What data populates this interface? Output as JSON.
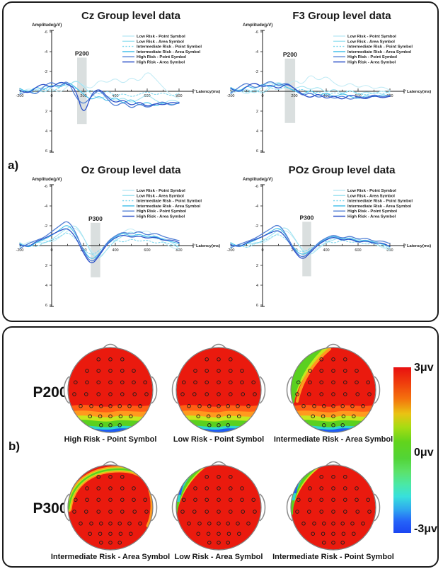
{
  "figure": {
    "panel_a_label": "a)",
    "panel_b_label": "b)"
  },
  "legend": {
    "items": [
      {
        "label": "Low Risk - Point Symbol",
        "color": "#c2ebf5",
        "dash": false
      },
      {
        "label": "Low Risk - Area Symbol",
        "color": "#9de2f1",
        "dash": false
      },
      {
        "label": "Intermediate Risk - Point Symbol",
        "color": "#7cd7ef",
        "dash": true
      },
      {
        "label": "Intermediate Risk - Area Symbol",
        "color": "#3cbde9",
        "dash": false
      },
      {
        "label": "High Risk - Point Symbol",
        "color": "#517fd5",
        "dash": false
      },
      {
        "label": "High Risk - Area Symbol",
        "color": "#2b50c8",
        "dash": false
      }
    ]
  },
  "palette": {
    "red": "#ea1a0e",
    "orange2": "#ff5f14",
    "orange": "#ff9a1e",
    "yellow_green": "#c6e81e",
    "green": "#5ad020",
    "cyan": "#2ed8cc",
    "blue": "#1e5cf5"
  },
  "chart_data": [
    {
      "type": "line",
      "svg_id": "erp-cz",
      "title": "Cz Group level data",
      "xlabel": "Latency(ms)",
      "ylabel": "Amplitude(μV)",
      "xlim": [
        -200,
        800
      ],
      "ylim": [
        -6,
        6
      ],
      "y_inverted": true,
      "xticks": [
        -200,
        0,
        200,
        400,
        600,
        800
      ],
      "yticks": [
        -6,
        -4,
        -2,
        2,
        4,
        6
      ],
      "x_start": -200,
      "x_step": 50,
      "highlight": {
        "label": "P200",
        "from": 160,
        "to": 220,
        "y_from": -3.4,
        "y_to": 3.3
      },
      "series": [
        [
          0.2,
          -0.4,
          0.1,
          -0.6,
          -0.3,
          0.2,
          -0.5,
          -1.1,
          -0.6,
          -0.2,
          -1.2,
          -0.8,
          -1.4,
          -0.7,
          -1.5,
          -0.9,
          -2.1,
          -1.3,
          -0.4,
          0.4,
          0.7
        ],
        [
          -0.2,
          0.3,
          -0.3,
          0.2,
          -0.4,
          -0.9,
          -0.4,
          -1.2,
          -0.5,
          0.3,
          0.8,
          0.4,
          1.0,
          0.6,
          1.2,
          0.8,
          0.3,
          0.9,
          1.3,
          0.8,
          1.1
        ],
        [
          0.1,
          -0.2,
          0.3,
          -0.3,
          0.1,
          -0.4,
          -0.8,
          -0.3,
          0.2,
          -0.2,
          0.4,
          -0.1,
          0.5,
          0.2,
          0.6,
          0.3,
          0.0,
          0.4,
          0.1,
          0.5,
          0.2
        ],
        [
          -0.3,
          0.2,
          -0.5,
          -0.1,
          -0.7,
          -0.3,
          -1.0,
          -0.4,
          0.3,
          0.9,
          0.4,
          1.1,
          0.5,
          1.3,
          0.7,
          1.5,
          1.0,
          1.6,
          1.1,
          1.4,
          1.2
        ],
        [
          0.3,
          -0.1,
          0.4,
          -0.5,
          -1.0,
          -0.4,
          -1.2,
          0.6,
          1.4,
          0.5,
          -0.2,
          0.8,
          1.6,
          1.0,
          1.8,
          1.2,
          1.7,
          1.3,
          1.0,
          1.5,
          1.1
        ],
        [
          -0.1,
          0.3,
          -0.4,
          -0.8,
          -0.3,
          -1.0,
          -0.7,
          -0.3,
          2.6,
          0.2,
          -0.3,
          0.6,
          1.2,
          0.8,
          1.5,
          1.0,
          1.6,
          1.2,
          1.4,
          1.1,
          1.2
        ]
      ]
    },
    {
      "type": "line",
      "svg_id": "erp-f3",
      "title": "F3 Group level data",
      "xlabel": "Latency(ms)",
      "ylabel": "Amplitude(μV)",
      "xlim": [
        -200,
        800
      ],
      "ylim": [
        -6,
        6
      ],
      "y_inverted": true,
      "xticks": [
        -200,
        0,
        200,
        400,
        600,
        800
      ],
      "yticks": [
        -6,
        -4,
        -2,
        2,
        4,
        6
      ],
      "x_start": -200,
      "x_step": 50,
      "highlight": {
        "label": "P200",
        "from": 140,
        "to": 205,
        "y_from": -3.3,
        "y_to": 3.2
      },
      "series": [
        [
          0.3,
          -0.2,
          0.4,
          -0.3,
          0.2,
          -0.6,
          -1.0,
          -0.5,
          -1.2,
          -0.6,
          -1.8,
          -1.0,
          -1.6,
          -0.8,
          -0.4,
          -0.9,
          -0.3,
          -0.7,
          -0.2,
          -0.5,
          -0.1
        ],
        [
          -0.2,
          0.2,
          -0.3,
          0.3,
          -0.5,
          -1.0,
          -0.4,
          -0.8,
          -0.2,
          -0.6,
          -0.1,
          -0.5,
          0.2,
          -0.3,
          0.3,
          -0.2,
          0.4,
          0.0,
          0.3,
          -0.1,
          0.2
        ],
        [
          0.1,
          -0.3,
          0.2,
          -0.2,
          0.3,
          -0.4,
          -0.1,
          -0.5,
          0.1,
          -0.3,
          0.3,
          0.0,
          0.4,
          0.1,
          0.3,
          -0.1,
          0.2,
          0.4,
          0.1,
          0.3,
          0.0
        ],
        [
          -0.4,
          0.1,
          -0.6,
          -0.2,
          -0.8,
          -0.3,
          -0.9,
          -0.4,
          -0.1,
          0.4,
          -0.2,
          0.5,
          0.1,
          0.6,
          0.2,
          0.5,
          0.8,
          0.4,
          0.6,
          0.3,
          0.5
        ],
        [
          0.2,
          -0.4,
          -0.9,
          -0.3,
          -0.6,
          -1.1,
          -0.5,
          -0.9,
          -0.3,
          0.5,
          0.1,
          0.7,
          0.3,
          0.8,
          0.4,
          0.9,
          0.5,
          0.7,
          0.3,
          0.6,
          0.4
        ],
        [
          -0.3,
          0.2,
          -0.5,
          -0.9,
          -0.4,
          -0.7,
          -0.2,
          -0.8,
          -0.3,
          0.3,
          0.7,
          0.2,
          0.8,
          0.4,
          0.9,
          0.3,
          0.6,
          0.8,
          0.4,
          0.7,
          0.5
        ]
      ]
    },
    {
      "type": "line",
      "svg_id": "erp-oz",
      "title": "Oz Group level data",
      "xlabel": "Latency(ms)",
      "ylabel": "Amplitude(μV)",
      "xlim": [
        -200,
        800
      ],
      "ylim": [
        -6,
        6
      ],
      "y_inverted": true,
      "xticks": [
        -200,
        0,
        200,
        400,
        600,
        800
      ],
      "yticks": [
        -6,
        -4,
        -2,
        2,
        4,
        6
      ],
      "x_start": -200,
      "x_step": 50,
      "highlight": {
        "label": "P300",
        "from": 245,
        "to": 305,
        "y_from": -2.3,
        "y_to": 3.2
      },
      "series": [
        [
          0.2,
          -0.5,
          -0.2,
          -0.6,
          -0.3,
          -0.8,
          -1.5,
          -1.9,
          -0.8,
          0.6,
          1.2,
          0.4,
          -0.6,
          -1.4,
          -1.8,
          -1.2,
          -1.6,
          -0.9,
          -0.4,
          0.2,
          0.4
        ],
        [
          -0.3,
          0.2,
          -0.4,
          -0.2,
          -0.6,
          -1.2,
          -1.8,
          -2.1,
          -0.9,
          0.9,
          1.4,
          0.3,
          -0.5,
          -1.0,
          -1.5,
          -0.8,
          -1.2,
          -0.6,
          -0.8,
          -0.3,
          0.1
        ],
        [
          0.1,
          -0.2,
          0.2,
          -0.3,
          -0.5,
          -0.9,
          -1.4,
          -0.7,
          0.4,
          1.0,
          0.5,
          -0.2,
          -0.6,
          -0.3,
          -0.7,
          -0.4,
          -0.6,
          -0.2,
          -0.4,
          -0.1,
          0.2
        ],
        [
          -0.2,
          0.3,
          -0.3,
          -0.6,
          -1.0,
          -1.6,
          -2.2,
          -1.2,
          0.5,
          1.5,
          0.8,
          -0.3,
          -0.9,
          -1.3,
          -0.9,
          -1.2,
          -0.8,
          -1.0,
          -0.6,
          -0.4,
          -0.2
        ],
        [
          0.3,
          -0.2,
          -0.5,
          -0.8,
          -1.4,
          -2.0,
          -2.6,
          -1.4,
          0.6,
          1.8,
          0.9,
          -0.4,
          -1.0,
          -1.4,
          -1.1,
          -1.5,
          -1.0,
          -1.3,
          -0.9,
          -0.7,
          -0.5
        ],
        [
          -0.1,
          0.2,
          -0.4,
          -0.7,
          -1.1,
          -1.5,
          -1.8,
          -0.9,
          0.8,
          2.0,
          1.0,
          -0.2,
          -0.8,
          -1.1,
          -0.8,
          -1.0,
          -0.7,
          -0.9,
          -0.5,
          -0.6,
          -0.3
        ]
      ]
    },
    {
      "type": "line",
      "svg_id": "erp-poz",
      "title": "POz Group level data",
      "xlabel": "Latency(ms)",
      "ylabel": "Amplitude(μV)",
      "xlim": [
        -200,
        800
      ],
      "ylim": [
        -6,
        6
      ],
      "y_inverted": true,
      "xticks": [
        -200,
        0,
        200,
        400,
        600,
        800
      ],
      "yticks": [
        -6,
        -4,
        -2,
        2,
        4,
        6
      ],
      "x_start": -200,
      "x_step": 50,
      "highlight": {
        "label": "P300",
        "from": 250,
        "to": 305,
        "y_from": -2.4,
        "y_to": 3.1
      },
      "series": [
        [
          0.3,
          -0.3,
          0.2,
          -0.4,
          -0.2,
          -0.7,
          -1.3,
          -1.6,
          -0.7,
          0.4,
          0.8,
          0.2,
          -0.4,
          -0.8,
          -0.5,
          -0.9,
          -0.4,
          -0.6,
          -0.2,
          0.2,
          0.5
        ],
        [
          -0.2,
          0.3,
          -0.3,
          -0.1,
          -0.5,
          -1.0,
          -1.6,
          -1.9,
          -0.8,
          0.6,
          1.0,
          0.3,
          -0.3,
          -0.6,
          -0.9,
          -0.5,
          -0.7,
          -0.3,
          -0.5,
          -0.1,
          0.2
        ],
        [
          0.1,
          -0.2,
          0.3,
          -0.2,
          -0.4,
          -0.8,
          -1.2,
          -0.6,
          0.3,
          0.7,
          0.3,
          -0.2,
          -0.5,
          -0.2,
          -0.6,
          -0.3,
          -0.4,
          -0.1,
          -0.3,
          0.1,
          0.3
        ],
        [
          -0.3,
          0.2,
          -0.2,
          -0.5,
          -0.9,
          -1.4,
          -1.9,
          -1.0,
          0.4,
          1.0,
          0.5,
          -0.2,
          -0.7,
          -1.0,
          -0.6,
          -0.8,
          -0.4,
          -0.6,
          -0.3,
          -0.2,
          0.1
        ],
        [
          0.2,
          -0.1,
          -0.4,
          -0.7,
          -1.2,
          -1.7,
          -2.2,
          -1.1,
          0.5,
          1.3,
          0.6,
          -0.3,
          -0.8,
          -1.1,
          -0.7,
          -1.0,
          -0.6,
          -0.8,
          -0.4,
          -0.5,
          -0.2
        ],
        [
          -0.1,
          0.2,
          -0.3,
          -0.6,
          -0.9,
          -1.3,
          -1.6,
          -0.8,
          0.6,
          1.5,
          0.7,
          -0.1,
          -0.6,
          -0.9,
          -0.5,
          -0.7,
          -0.3,
          -0.5,
          -0.2,
          -0.3,
          0.1
        ]
      ]
    },
    {
      "type": "heatmap-topo",
      "row_label": "P200",
      "maps": [
        {
          "caption": "High Risk - Point Symbol",
          "pattern": [
            "bottom_bands"
          ]
        },
        {
          "caption": "Low Risk - Point Symbol",
          "pattern": [
            "bottom_bands",
            "left_green_edge"
          ]
        },
        {
          "caption": "Intermediate Risk - Area Symbol",
          "pattern": [
            "bottom_bands",
            "topleft_diagonal"
          ]
        }
      ]
    },
    {
      "type": "heatmap-topo",
      "row_label": "P300",
      "maps": [
        {
          "caption": "Intermediate Risk - Area Symbol",
          "pattern": [
            "green_streak"
          ]
        },
        {
          "caption": "Low Risk - Area Symbol",
          "pattern": [
            "blue_wedge_topleft"
          ]
        },
        {
          "caption": "Intermediate Risk - Point Symbol",
          "pattern": [
            "blue_band_topleft"
          ]
        }
      ]
    },
    {
      "type": "colorbar",
      "labels": [
        "3μv",
        "0μv",
        "-3μv"
      ],
      "range": [
        3,
        -3
      ]
    }
  ]
}
